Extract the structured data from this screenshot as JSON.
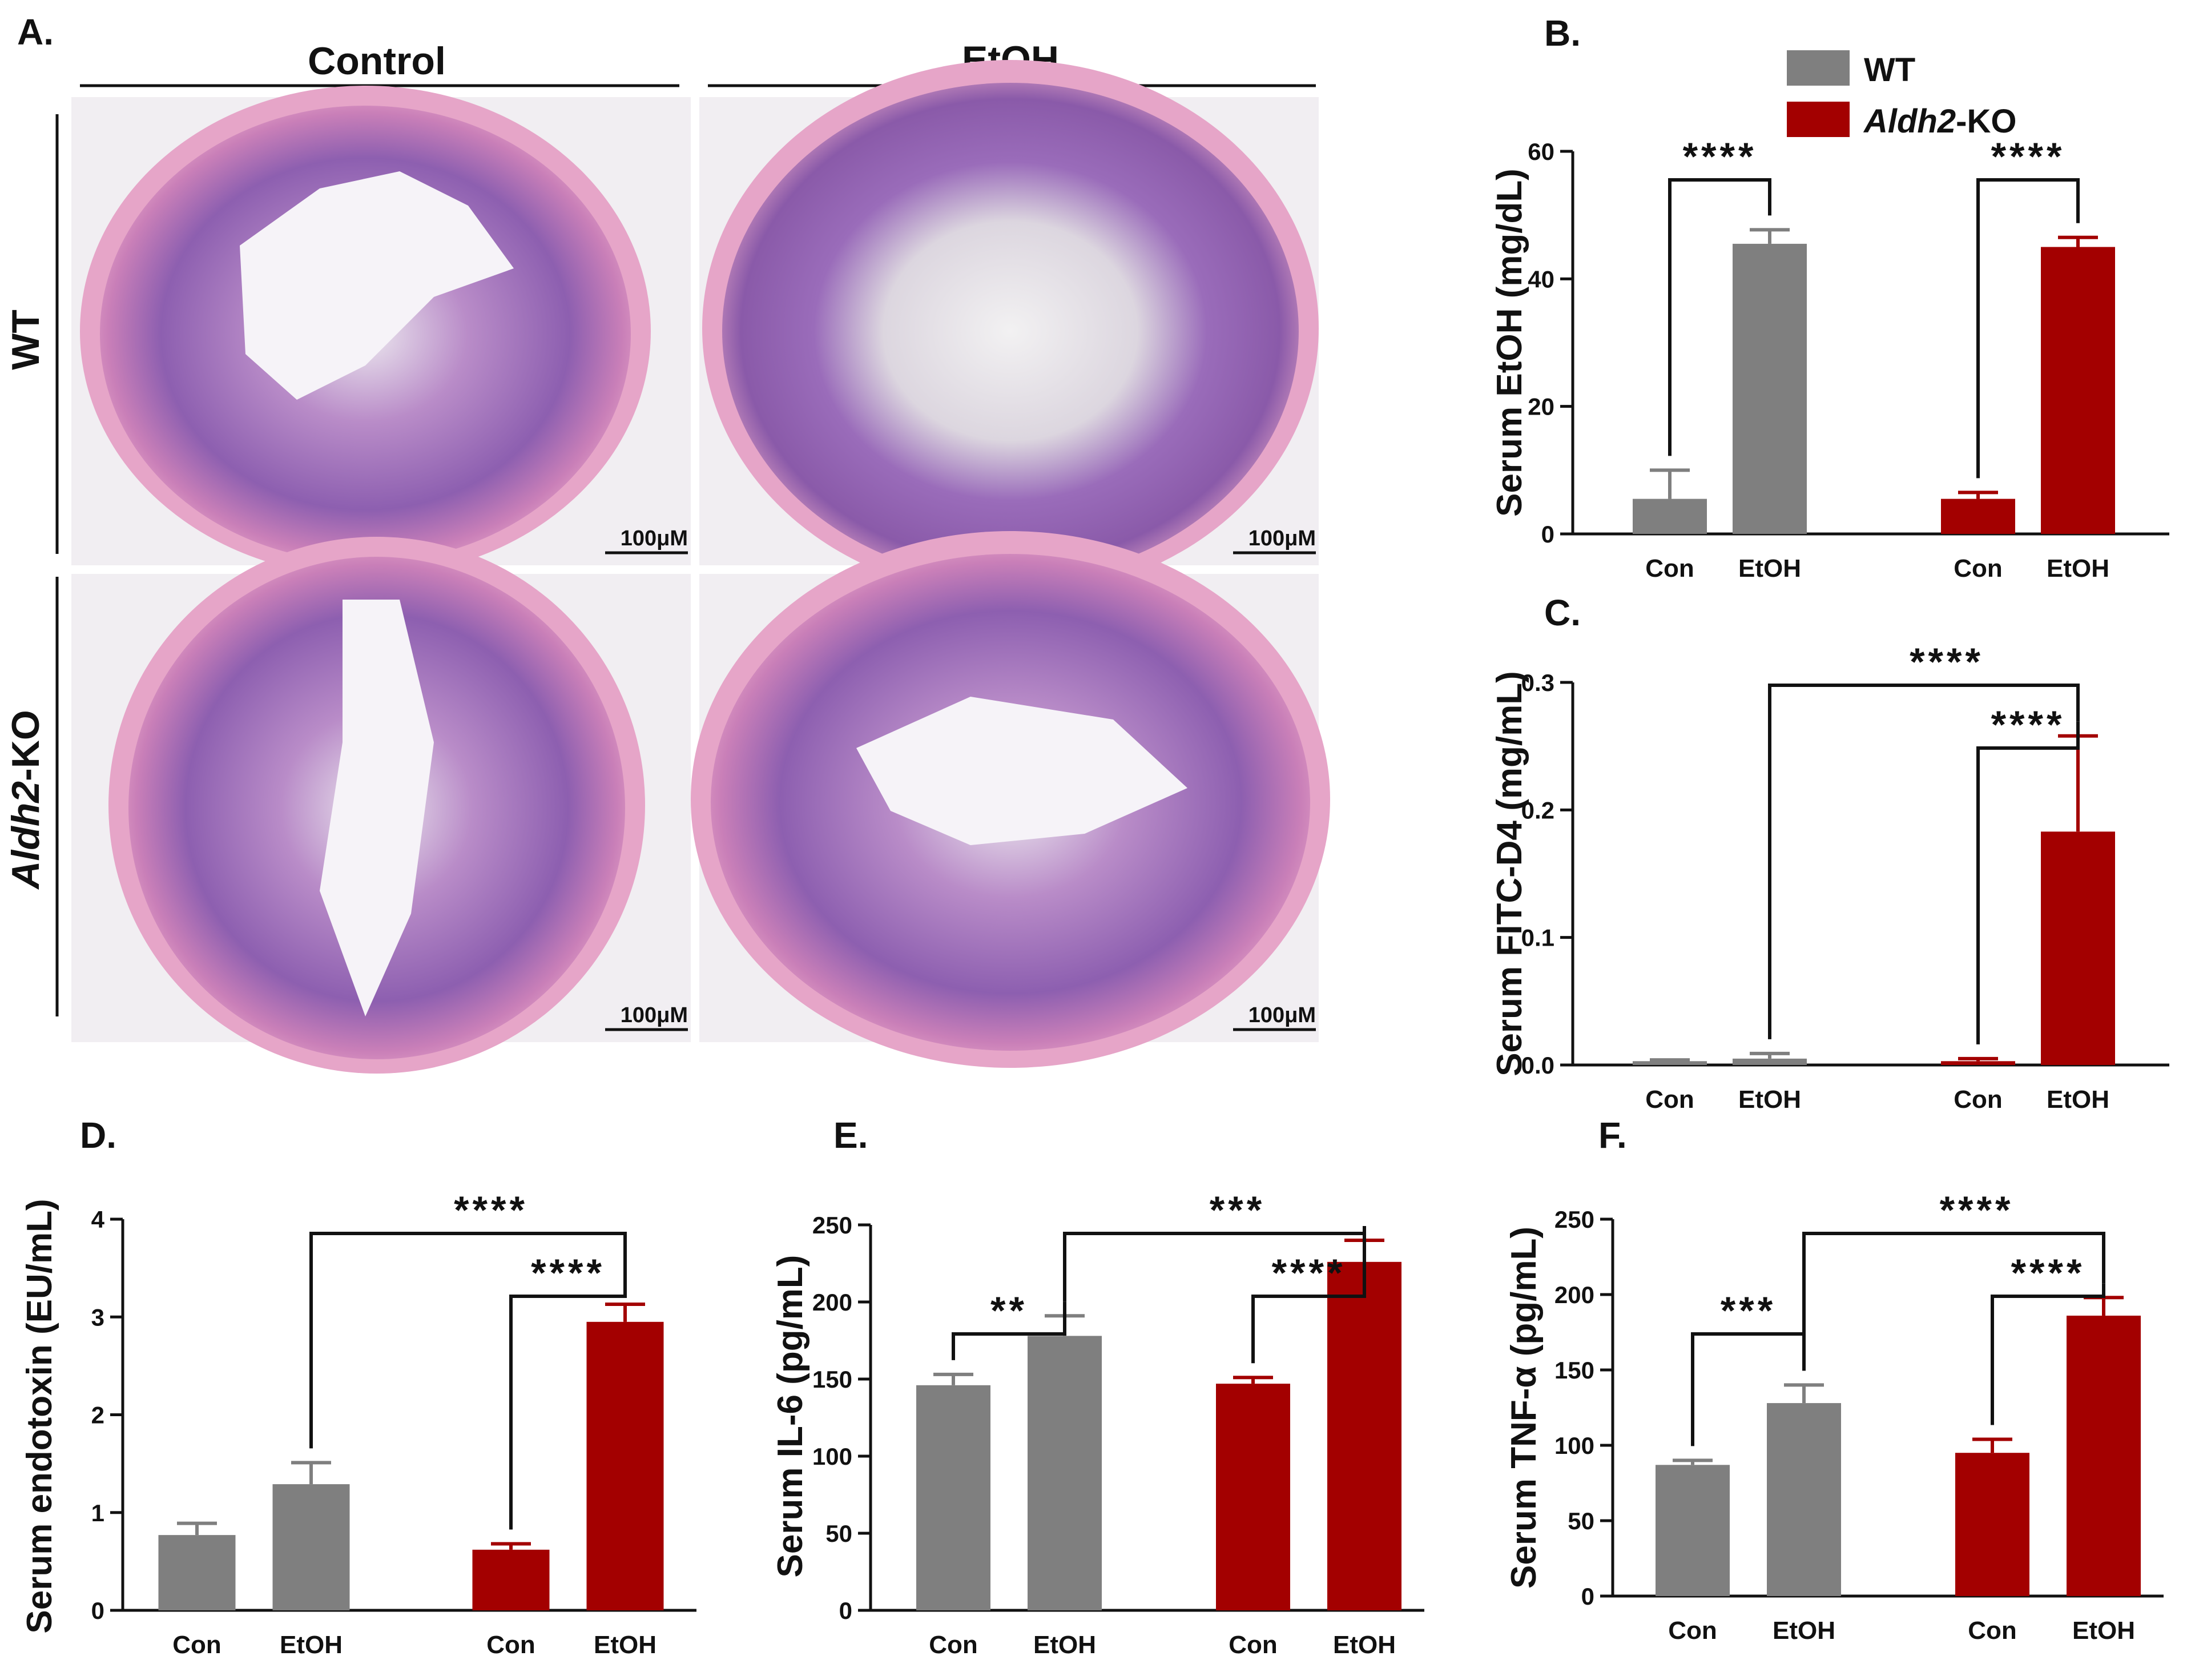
{
  "colors": {
    "wt": "#7f7f7f",
    "ko": "#a30000",
    "ink": "#111111"
  },
  "panel_a": {
    "label": "A.",
    "col_headers": [
      "Control",
      "EtOH"
    ],
    "row_headers": [
      {
        "prefix": "",
        "italic": "",
        "suffix": "WT"
      },
      {
        "prefix": "",
        "italic": "Aldh2",
        "suffix": "-KO"
      }
    ],
    "scale_bar": "100μM"
  },
  "legend": {
    "wt": "WT",
    "ko_italic": "Aldh2",
    "ko_suffix": "-KO"
  },
  "chart_data": [
    {
      "id": "B",
      "label": "B.",
      "type": "bar",
      "ylabel": "Serum EtOH (mg/dL)",
      "ylim": [
        0,
        60
      ],
      "yticks": [
        0,
        20,
        40,
        60
      ],
      "categories": [
        "Con",
        "EtOH",
        "Con",
        "EtOH"
      ],
      "groups": [
        "WT",
        "WT",
        "Aldh2-KO",
        "Aldh2-KO"
      ],
      "values": [
        5.5,
        45.5,
        5.5,
        45
      ],
      "errors": [
        4.5,
        2.2,
        1,
        1.5
      ],
      "annotations": [
        {
          "from": 0,
          "to": 1,
          "text": "****"
        },
        {
          "from": 2,
          "to": 3,
          "text": "****"
        }
      ]
    },
    {
      "id": "C",
      "label": "C.",
      "type": "bar",
      "ylabel": "Serum FITC-D4 (mg/mL)",
      "ylim": [
        0,
        0.3
      ],
      "yticks": [
        0.0,
        0.1,
        0.2,
        0.3
      ],
      "categories": [
        "Con",
        "EtOH",
        "Con",
        "EtOH"
      ],
      "groups": [
        "WT",
        "WT",
        "Aldh2-KO",
        "Aldh2-KO"
      ],
      "values": [
        0.003,
        0.005,
        0.003,
        0.183
      ],
      "errors": [
        0.001,
        0.004,
        0.002,
        0.075
      ],
      "annotations": [
        {
          "from": 2,
          "to": 3,
          "text": "****"
        },
        {
          "from": 1,
          "to": 3,
          "text": "****"
        }
      ]
    },
    {
      "id": "D",
      "label": "D.",
      "type": "bar",
      "ylabel": "Serum endotoxin (EU/mL)",
      "ylim": [
        0,
        4
      ],
      "yticks": [
        0,
        1,
        2,
        3,
        4
      ],
      "categories": [
        "Con",
        "EtOH",
        "Con",
        "EtOH"
      ],
      "groups": [
        "WT",
        "WT",
        "Aldh2-KO",
        "Aldh2-KO"
      ],
      "values": [
        0.77,
        1.29,
        0.62,
        2.95
      ],
      "errors": [
        0.12,
        0.22,
        0.06,
        0.18
      ],
      "annotations": [
        {
          "from": 2,
          "to": 3,
          "text": "****"
        },
        {
          "from": 1,
          "to": 3,
          "text": "****"
        }
      ]
    },
    {
      "id": "E",
      "label": "E.",
      "type": "bar",
      "ylabel": "Serum IL-6 (pg/mL)",
      "ylim": [
        0,
        250
      ],
      "yticks": [
        0,
        50,
        100,
        150,
        200,
        250
      ],
      "categories": [
        "Con",
        "EtOH",
        "Con",
        "EtOH"
      ],
      "groups": [
        "WT",
        "WT",
        "Aldh2-KO",
        "Aldh2-KO"
      ],
      "values": [
        146,
        178,
        147,
        226
      ],
      "errors": [
        7,
        13,
        4,
        14
      ],
      "annotations": [
        {
          "from": 0,
          "to": 1,
          "text": "**"
        },
        {
          "from": 2,
          "to": 3,
          "text": "****"
        },
        {
          "from": 1,
          "to": 3,
          "text": "***"
        }
      ]
    },
    {
      "id": "F",
      "label": "F.",
      "type": "bar",
      "ylabel": "Serum TNF-α (pg/mL)",
      "ylim": [
        0,
        250
      ],
      "yticks": [
        0,
        50,
        100,
        150,
        200,
        250
      ],
      "categories": [
        "Con",
        "EtOH",
        "Con",
        "EtOH"
      ],
      "groups": [
        "WT",
        "WT",
        "Aldh2-KO",
        "Aldh2-KO"
      ],
      "values": [
        87,
        128,
        95,
        186
      ],
      "errors": [
        3,
        12,
        9,
        12
      ],
      "annotations": [
        {
          "from": 0,
          "to": 1,
          "text": "***"
        },
        {
          "from": 2,
          "to": 3,
          "text": "****"
        },
        {
          "from": 1,
          "to": 3,
          "text": "****"
        }
      ]
    }
  ]
}
